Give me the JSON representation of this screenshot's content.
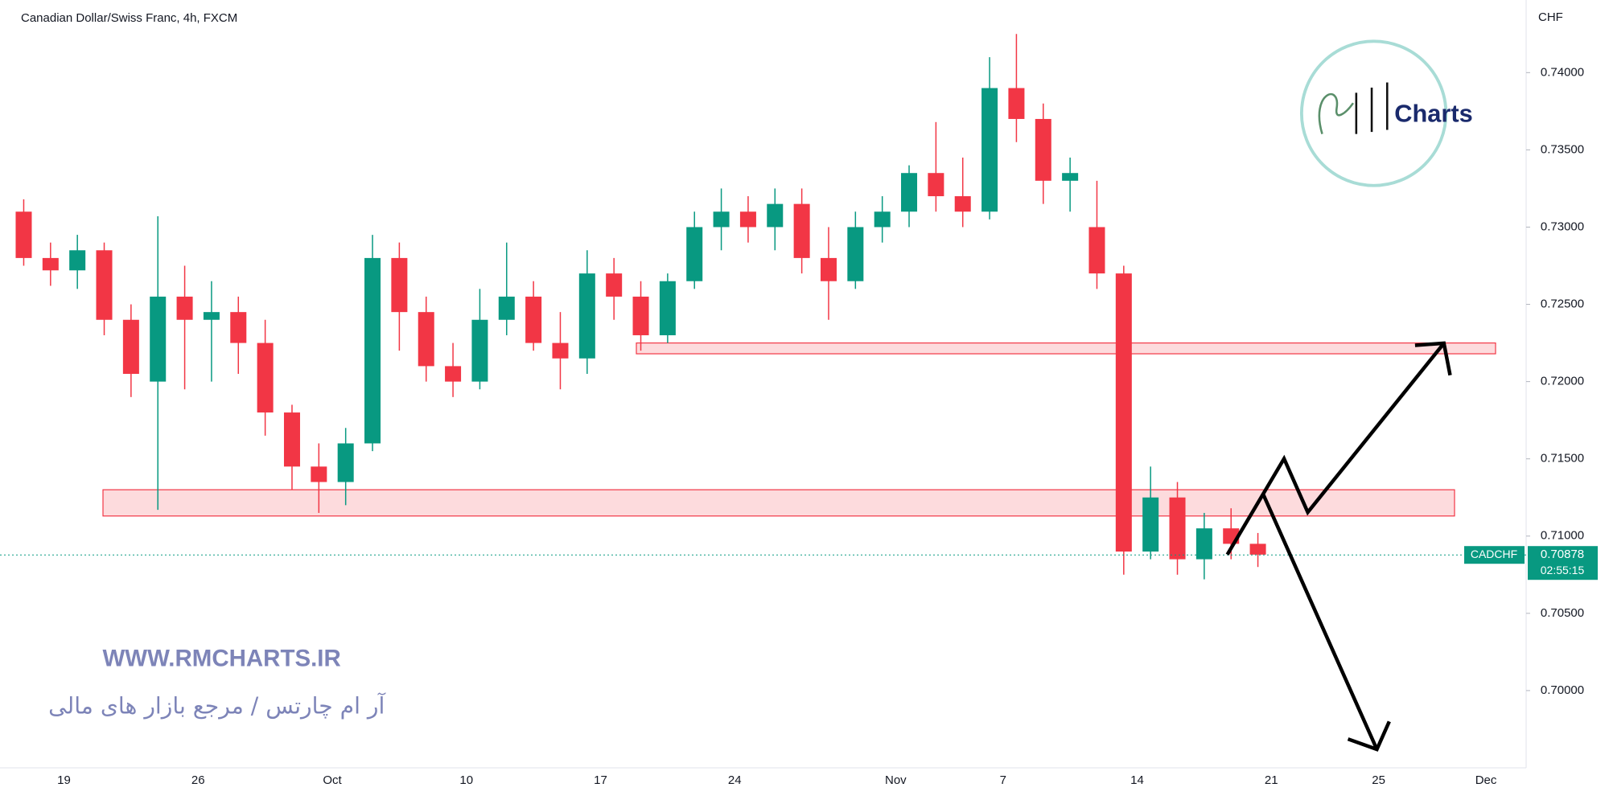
{
  "chart_data": {
    "type": "candlestick",
    "title": "Canadian Dollar/Swiss Franc, 4h, FXCM",
    "currency_label": "CHF",
    "categories": [
      null,
      null,
      "19",
      null,
      null,
      null,
      null,
      "26",
      null,
      null,
      null,
      null,
      "Oct",
      null,
      null,
      null,
      null,
      "10",
      null,
      null,
      null,
      null,
      "17",
      null,
      null,
      null,
      null,
      "24",
      null,
      null,
      null,
      null,
      null,
      "Nov",
      null,
      null,
      null,
      "7",
      null,
      null,
      null,
      null,
      "14",
      null,
      null,
      null,
      null,
      "21",
      null,
      null,
      null,
      "25",
      null,
      null,
      null,
      "Dec"
    ],
    "open": [
      0.731,
      0.728,
      0.7272,
      0.7285,
      0.724,
      0.72,
      0.7255,
      0.724,
      0.7245,
      0.7225,
      0.718,
      0.7145,
      0.7135,
      0.716,
      0.728,
      0.7245,
      0.721,
      0.72,
      0.724,
      0.7255,
      0.7225,
      0.7215,
      0.727,
      0.7255,
      0.723,
      0.7265,
      0.73,
      0.731,
      0.73,
      0.7315,
      0.728,
      0.7265,
      0.73,
      0.731,
      0.7335,
      0.732,
      0.731,
      0.739,
      0.737,
      0.733,
      0.73,
      0.727,
      0.709,
      0.7125,
      0.7085,
      0.7105,
      0.7095,
      null,
      null,
      null,
      null,
      null,
      null,
      null,
      null,
      null
    ],
    "high": [
      0.7318,
      0.729,
      0.7295,
      0.729,
      0.725,
      0.7307,
      0.7275,
      0.7265,
      0.7255,
      0.724,
      0.7185,
      0.716,
      0.717,
      0.7295,
      0.729,
      0.7255,
      0.7225,
      0.726,
      0.729,
      0.7265,
      0.7245,
      0.7285,
      0.728,
      0.7265,
      0.727,
      0.731,
      0.7325,
      0.732,
      0.7325,
      0.7325,
      0.73,
      0.731,
      0.732,
      0.734,
      0.7368,
      0.7345,
      0.741,
      0.7425,
      0.738,
      0.7345,
      0.733,
      0.7275,
      0.7145,
      0.7135,
      0.7115,
      0.7118,
      0.7102,
      null,
      null,
      null,
      null,
      null,
      null,
      null,
      null,
      null
    ],
    "low": [
      0.7275,
      0.7262,
      0.726,
      0.723,
      0.719,
      0.7117,
      0.7195,
      0.72,
      0.7205,
      0.7165,
      0.713,
      0.7115,
      0.712,
      0.7155,
      0.722,
      0.72,
      0.719,
      0.7195,
      0.723,
      0.722,
      0.7195,
      0.7205,
      0.724,
      0.722,
      0.7225,
      0.726,
      0.7285,
      0.729,
      0.7285,
      0.727,
      0.724,
      0.726,
      0.729,
      0.73,
      0.731,
      0.73,
      0.7305,
      0.7355,
      0.7315,
      0.731,
      0.726,
      0.7075,
      0.7085,
      0.7075,
      0.7072,
      0.7085,
      0.708,
      null,
      null,
      null,
      null,
      null,
      null,
      null,
      null,
      null
    ],
    "close": [
      0.728,
      0.7272,
      0.7285,
      0.724,
      0.7205,
      0.7255,
      0.724,
      0.7245,
      0.7225,
      0.718,
      0.7145,
      0.7135,
      0.716,
      0.728,
      0.7245,
      0.721,
      0.72,
      0.724,
      0.7255,
      0.7225,
      0.7215,
      0.727,
      0.7255,
      0.723,
      0.7265,
      0.73,
      0.731,
      0.73,
      0.7315,
      0.728,
      0.7265,
      0.73,
      0.731,
      0.7335,
      0.732,
      0.731,
      0.739,
      0.737,
      0.733,
      0.7335,
      0.727,
      0.709,
      0.7125,
      0.7085,
      0.7105,
      0.7095,
      0.7088,
      null,
      null,
      null,
      null,
      null,
      null,
      null,
      null,
      null
    ],
    "up_color": "#089981",
    "down_color": "#f23645",
    "ylim": [
      0.695,
      0.7447
    ],
    "yticks": [
      {
        "value": 0.7,
        "label": "0.70000"
      },
      {
        "value": 0.705,
        "label": "0.70500"
      },
      {
        "value": 0.71,
        "label": "0.71000"
      },
      {
        "value": 0.715,
        "label": "0.71500"
      },
      {
        "value": 0.72,
        "label": "0.72000"
      },
      {
        "value": 0.725,
        "label": "0.72500"
      },
      {
        "value": 0.73,
        "label": "0.73000"
      },
      {
        "value": 0.735,
        "label": "0.73500"
      },
      {
        "value": 0.74,
        "label": "0.74000"
      }
    ],
    "grid": false,
    "zones": [
      [
        0.7113,
        0.713
      ],
      [
        0.7218,
        0.7225
      ]
    ],
    "zone_color": "#f23645",
    "last_price": {
      "symbol": "CADCHF",
      "value": 0.70878,
      "label": "0.70878",
      "countdown": "02:55:15"
    },
    "watermark": {
      "url": "WWW.RMCHARTS.IR",
      "subtitle": "آر ام چارتس / مرجع بازار های مالی",
      "logo_text": "Charts"
    }
  }
}
